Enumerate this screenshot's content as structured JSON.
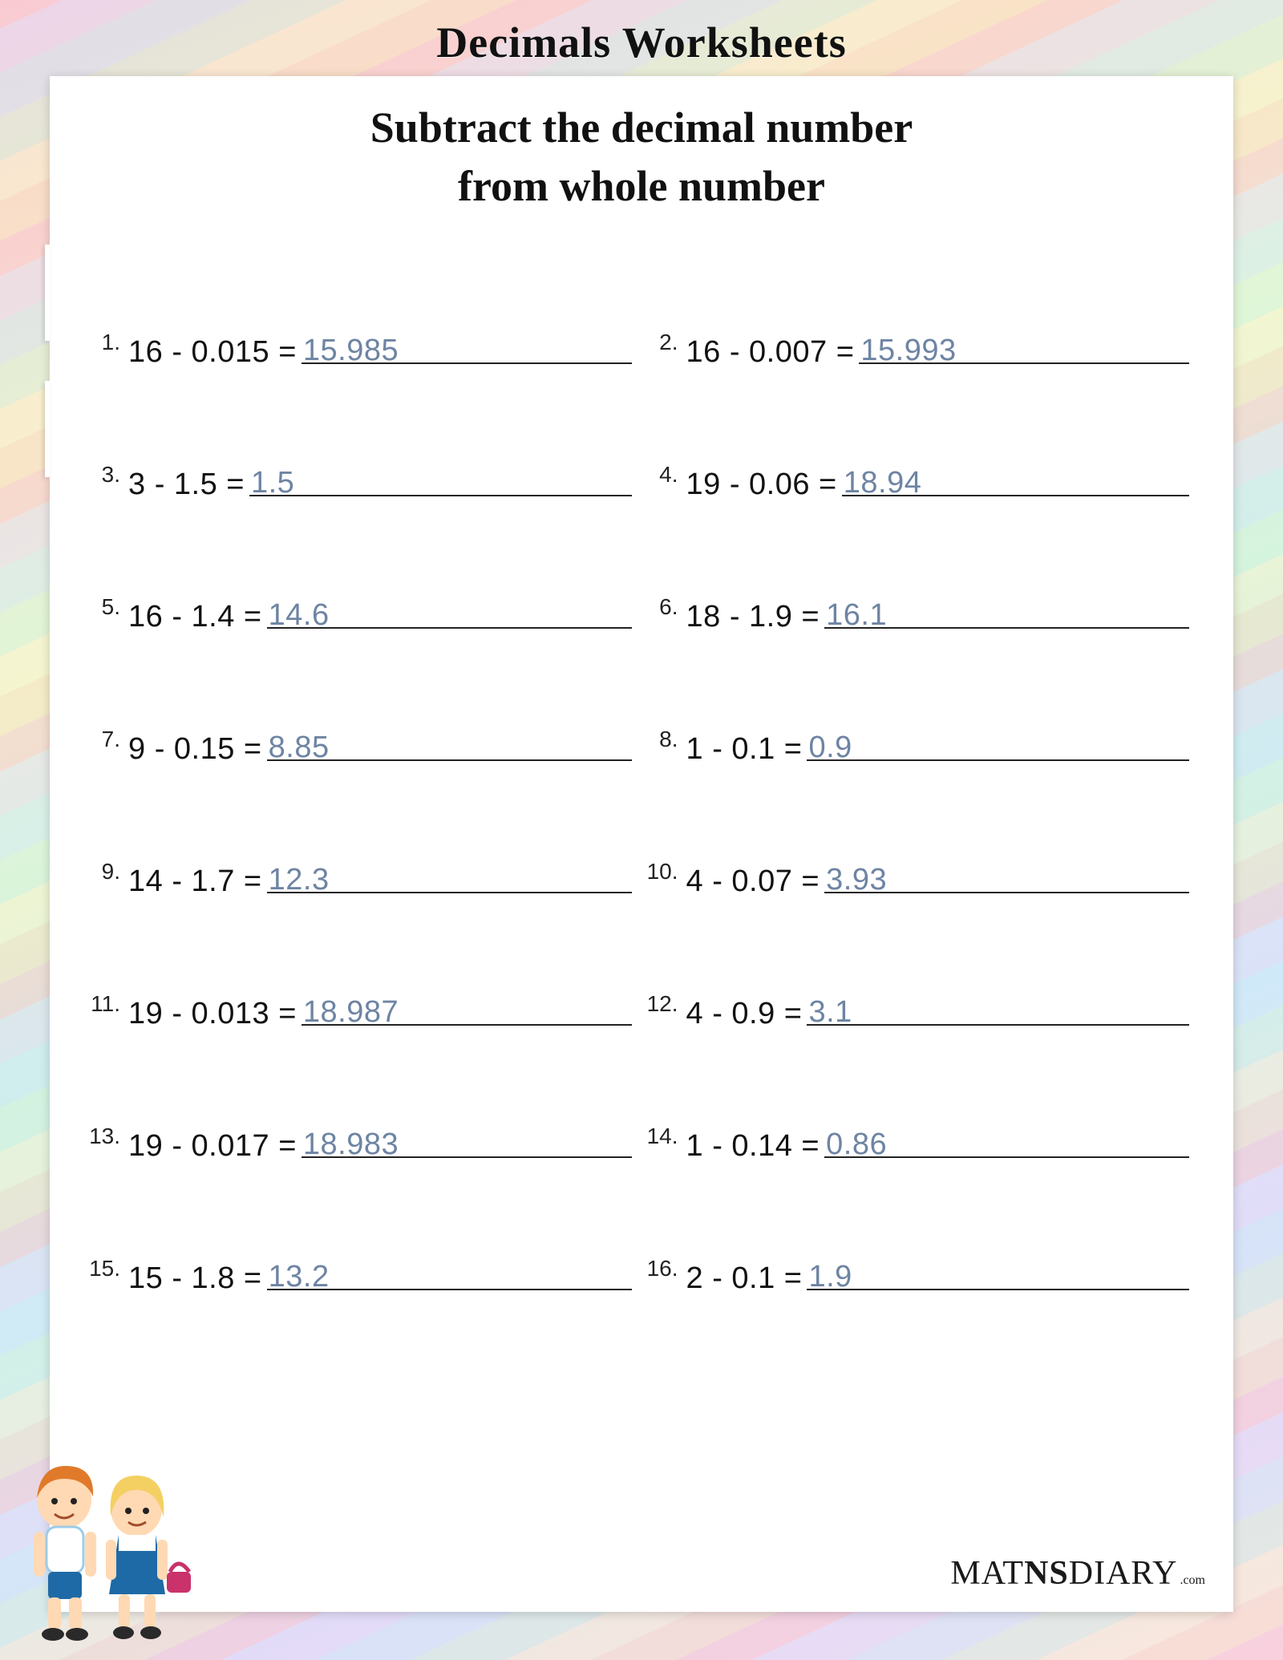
{
  "page_title": "Decimals Worksheets",
  "subtitle_line1": "Subtract the decimal number",
  "subtitle_line2": "from whole number",
  "answer_color": "#6e84a3",
  "text_color": "#111111",
  "problem_fontsize_pt": 29,
  "number_fontsize_pt": 21,
  "title_fontsize_pt": 40,
  "sheet_bg": "#ffffff",
  "problems": [
    {
      "n": "1.",
      "expr": "16 - 0.015 =",
      "ans": "15.985"
    },
    {
      "n": "2.",
      "expr": "16 - 0.007 =",
      "ans": "15.993"
    },
    {
      "n": "3.",
      "expr": "3 - 1.5 =",
      "ans": "1.5"
    },
    {
      "n": "4.",
      "expr": "19 - 0.06 =",
      "ans": "18.94"
    },
    {
      "n": "5.",
      "expr": "16 - 1.4 =",
      "ans": "14.6"
    },
    {
      "n": "6.",
      "expr": "18 - 1.9 =",
      "ans": "16.1"
    },
    {
      "n": "7.",
      "expr": "9 - 0.15 =",
      "ans": "8.85"
    },
    {
      "n": "8.",
      "expr": "1 - 0.1 =",
      "ans": "0.9"
    },
    {
      "n": "9.",
      "expr": "14 - 1.7 =",
      "ans": "12.3"
    },
    {
      "n": "10.",
      "expr": "4 - 0.07 =",
      "ans": "3.93"
    },
    {
      "n": "11.",
      "expr": "19 - 0.013 =",
      "ans": "18.987"
    },
    {
      "n": "12.",
      "expr": "4 - 0.9 =",
      "ans": "3.1"
    },
    {
      "n": "13.",
      "expr": "19 - 0.017 =",
      "ans": "18.983"
    },
    {
      "n": "14.",
      "expr": "1 - 0.14 =",
      "ans": "0.86"
    },
    {
      "n": "15.",
      "expr": "15 - 1.8 =",
      "ans": "13.2"
    },
    {
      "n": "16.",
      "expr": "2 - 0.1 =",
      "ans": "1.9"
    }
  ],
  "brand": {
    "part1": "MAT",
    "part2": "NS",
    "part3": "DIARY",
    "suffix": ".com"
  },
  "kids_colors": {
    "boy_hair": "#e07a2a",
    "boy_skin": "#ffd9b3",
    "boy_shirt": "#ffffff",
    "boy_shorts": "#1e6aa6",
    "girl_hair": "#f4d063",
    "girl_dress": "#1e6aa6",
    "girl_skin": "#ffd9b3",
    "bag": "#c9326a",
    "shoes": "#2a2a2a"
  }
}
